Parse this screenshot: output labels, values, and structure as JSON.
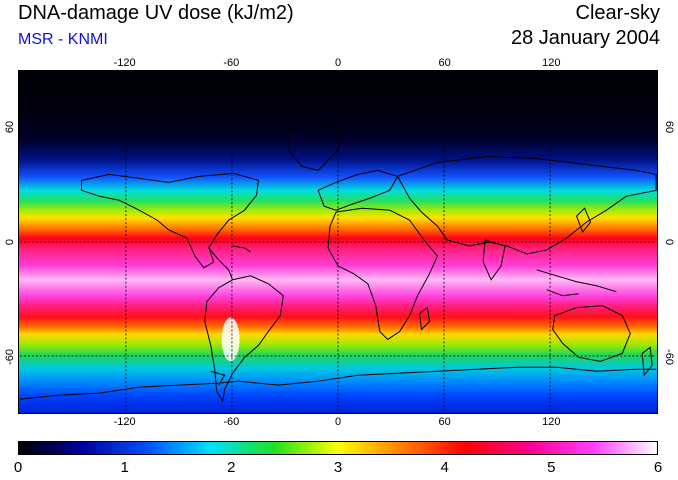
{
  "header": {
    "title": "DNA-damage UV dose (kJ/m2)",
    "source": "MSR - KNMI",
    "condition": "Clear-sky",
    "date": "28 January 2004"
  },
  "map": {
    "longitude_ticks": [
      "-120",
      "-60",
      "0",
      "60",
      "120"
    ],
    "latitude_ticks_left": [
      "60",
      "0",
      "-60"
    ],
    "latitude_ticks_right": [
      "60",
      "0",
      "-60"
    ],
    "longitude_values": [
      -120,
      -60,
      0,
      60,
      120
    ],
    "latitude_values": [
      60,
      0,
      -60
    ],
    "lon_range": [
      -180,
      180
    ],
    "lat_range": [
      90,
      -90
    ],
    "gridlines": "dashed"
  },
  "colorbar": {
    "labels": [
      "0",
      "1",
      "2",
      "3",
      "4",
      "5",
      "6"
    ],
    "min": 0,
    "max": 6,
    "unit": "kJ/m2",
    "stops": [
      "#000000",
      "#0000a0",
      "#0050ff",
      "#00e0ff",
      "#20e020",
      "#ffff00",
      "#ff8000",
      "#ff0000",
      "#ff0090",
      "#ff40ff",
      "#ffffff"
    ]
  },
  "colors": {
    "title_text": "#000000",
    "source_text": "#1010e0"
  }
}
